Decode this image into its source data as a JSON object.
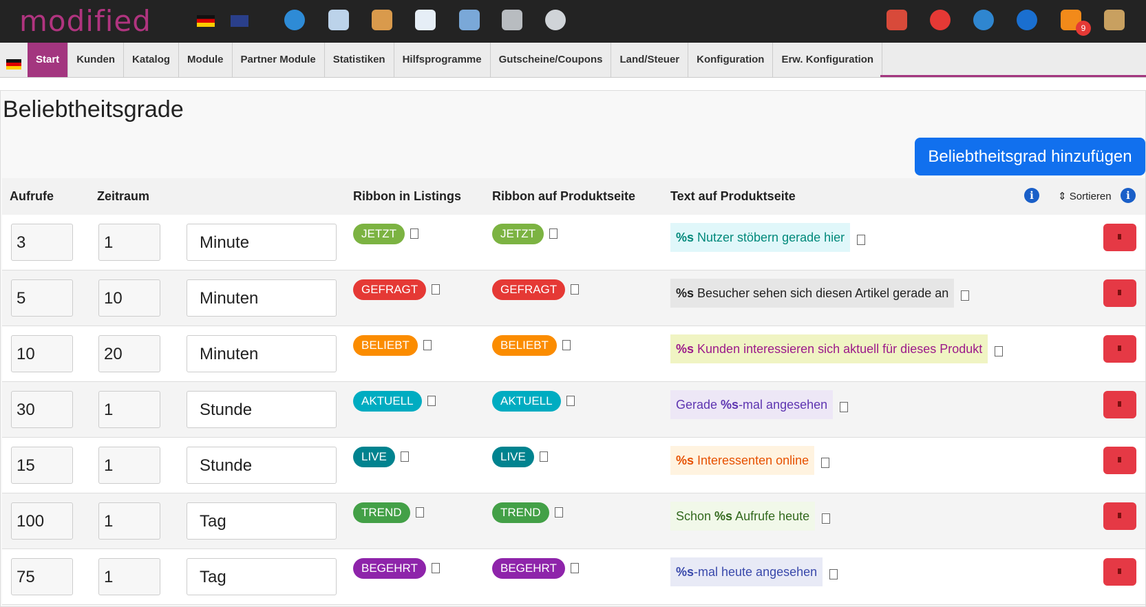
{
  "header": {
    "logo": "modified",
    "badge": "9"
  },
  "nav": {
    "items": [
      "Start",
      "Kunden",
      "Katalog",
      "Module",
      "Partner Module",
      "Statistiken",
      "Hilfsprogramme",
      "Gutscheine/Coupons",
      "Land/Steuer",
      "Konfiguration",
      "Erw. Konfiguration"
    ],
    "active": 0
  },
  "page": {
    "title": "Beliebtheitsgrade",
    "button": "Beliebtheitsgrad hinzufügen"
  },
  "table": {
    "headers": [
      "Aufrufe",
      "Zeitraum",
      "Ribbon in Listings",
      "Ribbon auf Produktseite",
      "Text auf Produktseite",
      "⇕ Sortieren"
    ],
    "rows": [
      {
        "aufrufe": 3,
        "zeitraum": 1,
        "unit": "Minute",
        "ribbon": "JETZT",
        "ribbon_color": "#7cb342",
        "text": [
          {
            "t": "%s",
            "bold": true
          },
          {
            "t": " Nutzer stöbern gerade hier",
            "bold": false
          }
        ],
        "text_bg": "#e0f7fa",
        "text_color": "#00897b"
      },
      {
        "aufrufe": 5,
        "zeitraum": 10,
        "unit": "Minuten",
        "ribbon": "GEFRAGT",
        "ribbon_color": "#e53935",
        "text": [
          {
            "t": "%s",
            "bold": true
          },
          {
            "t": " Besucher sehen sich diesen Artikel gerade an",
            "bold": false
          }
        ],
        "text_bg": "#e6e6e6",
        "text_color": "#222222"
      },
      {
        "aufrufe": 10,
        "zeitraum": 20,
        "unit": "Minuten",
        "ribbon": "BELIEBT",
        "ribbon_color": "#fb8c00",
        "text": [
          {
            "t": "%s",
            "bold": true
          },
          {
            "t": " Kunden interessieren sich aktuell für dieses Produkt",
            "bold": false
          }
        ],
        "text_bg": "#f0f4c3",
        "text_color": "#9c1a8a"
      },
      {
        "aufrufe": 30,
        "zeitraum": 1,
        "unit": "Stunde",
        "ribbon": "AKTUELL",
        "ribbon_color": "#00acc1",
        "text": [
          {
            "t": "Gerade ",
            "bold": false
          },
          {
            "t": "%s",
            "bold": true
          },
          {
            "t": "-mal angesehen",
            "bold": false
          }
        ],
        "text_bg": "#ede7f6",
        "text_color": "#5e35b1"
      },
      {
        "aufrufe": 15,
        "zeitraum": 1,
        "unit": "Stunde",
        "ribbon": "LIVE",
        "ribbon_color": "#00838f",
        "text": [
          {
            "t": "%s",
            "bold": true
          },
          {
            "t": " Interessenten online",
            "bold": false
          }
        ],
        "text_bg": "#fff3e0",
        "text_color": "#e65100"
      },
      {
        "aufrufe": 100,
        "zeitraum": 1,
        "unit": "Tag",
        "ribbon": "TREND",
        "ribbon_color": "#43a047",
        "text": [
          {
            "t": "Schon ",
            "bold": false
          },
          {
            "t": "%s",
            "bold": true
          },
          {
            "t": " Aufrufe heute",
            "bold": false
          }
        ],
        "text_bg": "#f1f8e9",
        "text_color": "#33691e"
      },
      {
        "aufrufe": 75,
        "zeitraum": 1,
        "unit": "Tag",
        "ribbon": "BEGEHRT",
        "ribbon_color": "#8e24aa",
        "text": [
          {
            "t": "%s",
            "bold": true
          },
          {
            "t": "-mal heute angesehen",
            "bold": false
          }
        ],
        "text_bg": "#e8eaf6",
        "text_color": "#3949ab"
      }
    ]
  }
}
